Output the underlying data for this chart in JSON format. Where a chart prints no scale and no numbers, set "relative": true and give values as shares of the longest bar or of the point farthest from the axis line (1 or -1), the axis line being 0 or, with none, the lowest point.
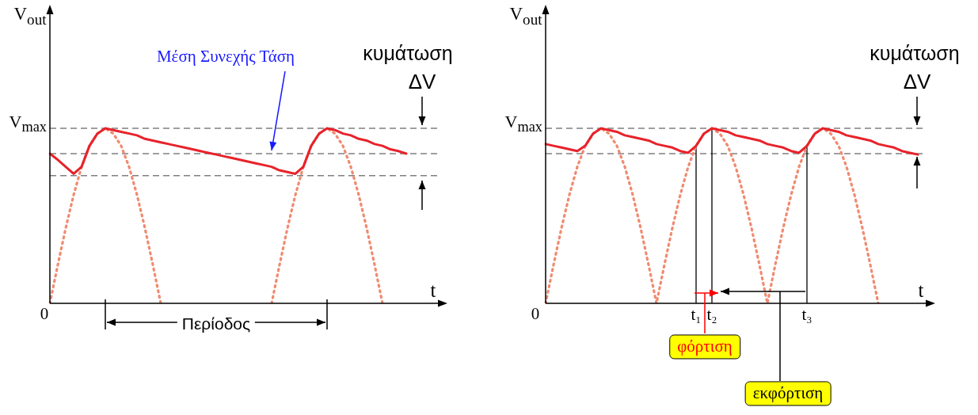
{
  "chart_data": [
    {
      "type": "line",
      "relative": true,
      "ylabel": "V$_{out}$",
      "xlabel": "t",
      "legend": false,
      "grid": false,
      "marker": "none",
      "categories": [
        null,
        null,
        null,
        null,
        null,
        null,
        null,
        null,
        null,
        null,
        null,
        null,
        null,
        null,
        null,
        null,
        null,
        null,
        null,
        null,
        null,
        null,
        null,
        null,
        null,
        null,
        null,
        null,
        null,
        null,
        null,
        null,
        null,
        null,
        null,
        null,
        null,
        null,
        null,
        null,
        null,
        null,
        null,
        null,
        null,
        null,
        null,
        null,
        null,
        null
      ],
      "series": [
        {
          "color": "#f08a70",
          "line_style": "dotted",
          "values": [
            0,
            0.22,
            0.43,
            0.62,
            0.78,
            0.9,
            0.97,
            1,
            0.97,
            0.9,
            0.78,
            0.62,
            0.43,
            0.22,
            0,
            null,
            null,
            null,
            null,
            null,
            null,
            null,
            null,
            null,
            null,
            null,
            null,
            null,
            0,
            0.22,
            0.43,
            0.62,
            0.78,
            0.9,
            0.97,
            1,
            0.97,
            0.9,
            0.78,
            0.62,
            0.43,
            0.22,
            0,
            null,
            null,
            null,
            null,
            null,
            null,
            null
          ]
        },
        {
          "color": "#e8222a",
          "line_style": "solid",
          "values": [
            0.855,
            0.82,
            0.78,
            0.74,
            0.78,
            0.9,
            0.97,
            1,
            0.99,
            0.98,
            0.97,
            0.96,
            0.94,
            0.93,
            0.92,
            0.91,
            0.9,
            0.89,
            0.88,
            0.87,
            0.86,
            0.85,
            0.84,
            0.83,
            0.82,
            0.81,
            0.8,
            0.79,
            0.78,
            0.76,
            0.75,
            0.74,
            0.78,
            0.9,
            0.97,
            1,
            0.99,
            0.97,
            0.96,
            0.94,
            0.93,
            0.91,
            0.9,
            0.88,
            0.87,
            0.855,
            null,
            null,
            null,
            null
          ]
        }
      ],
      "ref_lines": [
        {
          "axis": "y",
          "value": 1,
          "label": "V$_{max}$",
          "color": "#808080",
          "line_style": "dashed"
        },
        {
          "axis": "y",
          "value": 0.855,
          "color": "#808080",
          "line_style": "dashed"
        },
        {
          "axis": "y",
          "value": 0.73,
          "color": "#808080",
          "line_style": "dashed"
        }
      ],
      "annotations": [
        "κυμάτωση",
        "ΔV",
        "Μέση Συνεχής Τάση",
        "Περίοδος",
        "0"
      ]
    },
    {
      "type": "line",
      "relative": true,
      "ylabel": "V$_{out}$",
      "xlabel": "t",
      "legend": false,
      "grid": false,
      "marker": "none",
      "categories": [
        null,
        null,
        null,
        null,
        null,
        null,
        null,
        null,
        null,
        null,
        null,
        null,
        null,
        null,
        null,
        null,
        null,
        null,
        null,
        "t₁",
        null,
        "t₂",
        null,
        null,
        null,
        null,
        null,
        null,
        null,
        null,
        null,
        null,
        null,
        "t₃",
        null,
        null,
        null,
        null,
        null,
        null,
        null,
        null,
        null,
        null,
        null,
        null,
        null,
        null,
        null
      ],
      "series": [
        {
          "color": "#f08a70",
          "line_style": "dotted",
          "values": [
            0,
            0.22,
            0.43,
            0.62,
            0.78,
            0.9,
            0.97,
            1,
            0.97,
            0.9,
            0.78,
            0.62,
            0.43,
            0.22,
            0,
            0.22,
            0.43,
            0.62,
            0.78,
            0.9,
            0.97,
            1,
            0.97,
            0.9,
            0.78,
            0.62,
            0.43,
            0.22,
            0,
            0.22,
            0.43,
            0.62,
            0.78,
            0.9,
            0.97,
            1,
            0.97,
            0.9,
            0.78,
            0.62,
            0.43,
            0.22,
            0,
            null,
            null,
            null,
            null,
            null,
            null
          ]
        },
        {
          "color": "#e8222a",
          "line_style": "solid",
          "values": [
            0.91,
            0.9,
            0.89,
            0.88,
            0.87,
            0.9,
            0.97,
            1,
            0.99,
            0.98,
            0.96,
            0.95,
            0.94,
            0.93,
            0.91,
            0.9,
            0.89,
            0.87,
            0.86,
            0.9,
            0.97,
            1,
            0.99,
            0.98,
            0.96,
            0.95,
            0.94,
            0.93,
            0.91,
            0.9,
            0.89,
            0.87,
            0.86,
            0.9,
            0.97,
            1,
            0.99,
            0.98,
            0.96,
            0.95,
            0.94,
            0.93,
            0.91,
            0.9,
            0.89,
            0.87,
            0.86,
            0.85,
            null
          ]
        }
      ],
      "ref_lines": [
        {
          "axis": "y",
          "value": 1,
          "label": "V$_{max}$",
          "color": "#808080",
          "line_style": "dashed"
        },
        {
          "axis": "y",
          "value": 0.855,
          "color": "#808080",
          "line_style": "dashed"
        },
        {
          "axis": "x",
          "value": "t₁",
          "color": "#000000",
          "line_style": "solid"
        },
        {
          "axis": "x",
          "value": "t₂",
          "color": "#000000",
          "line_style": "solid"
        },
        {
          "axis": "x",
          "value": "t₃",
          "color": "#000000",
          "line_style": "solid"
        }
      ],
      "annotations": [
        "κυμάτωση",
        "ΔV",
        "φόρτιση",
        "εκφόρτιση",
        "0"
      ]
    }
  ]
}
